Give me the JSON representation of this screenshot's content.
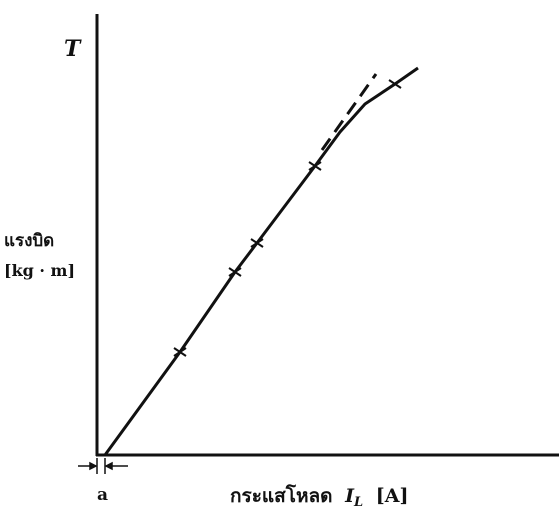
{
  "figure": {
    "y_axis_symbol": "T",
    "y_axis_name": "แรงบิด",
    "y_axis_unit": "[kg · m]",
    "offset_label": "a",
    "x_axis_name": "กระแสโหลด",
    "x_axis_symbol": "I",
    "x_axis_subscript": "L",
    "x_axis_unit": "[A]"
  }
}
